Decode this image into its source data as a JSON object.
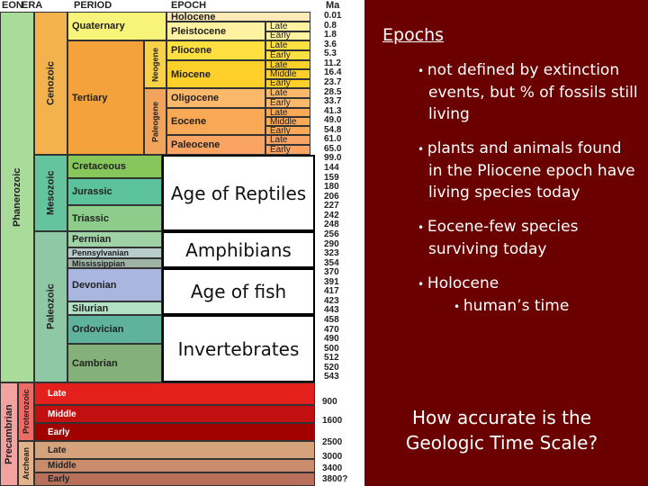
{
  "header": {
    "eon": "EON",
    "era": "ERA",
    "period": "PERIOD",
    "epoch": "EPOCH",
    "ma": "Ma"
  },
  "eons": [
    "Phanerozoic",
    "Precambrian"
  ],
  "eras": [
    "Cenozoic",
    "Mesozoic",
    "Paleozoic",
    "Proterozoic",
    "Archean"
  ],
  "cenozoic_periods": [
    "Quaternary",
    "Tertiary"
  ],
  "subperiods": [
    "Neogene",
    "Paleogene"
  ],
  "epochs": [
    {
      "name": "Holocene",
      "parts": []
    },
    {
      "name": "Pleistocene",
      "parts": [
        "Late",
        "Early"
      ]
    },
    {
      "name": "Pliocene",
      "parts": [
        "Late",
        "Early"
      ]
    },
    {
      "name": "Miocene",
      "parts": [
        "Late",
        "Middle",
        "Early"
      ]
    },
    {
      "name": "Oligocene",
      "parts": [
        "Late",
        "Early"
      ]
    },
    {
      "name": "Eocene",
      "parts": [
        "Late",
        "Middle",
        "Early"
      ]
    },
    {
      "name": "Paleocene",
      "parts": [
        "Late",
        "Early"
      ]
    }
  ],
  "periods": [
    "Cretaceous",
    "Jurassic",
    "Triassic",
    "Permian",
    "Pennsylvanian",
    "Mississippian",
    "Devonian",
    "Silurian",
    "Ordovician",
    "Cambrian"
  ],
  "ages": [
    "Age of Reptiles",
    "Amphibians",
    "Age of fish",
    "Invertebrates"
  ],
  "precambrian_rows": [
    "Late",
    "Middle",
    "Early",
    "Late",
    "Middle",
    "Early"
  ],
  "ma": [
    "0.01",
    "0.8",
    "1.8",
    "3.6",
    "5.3",
    "11.2",
    "16.4",
    "23.7",
    "28.5",
    "33.7",
    "41.3",
    "49.0",
    "54.8",
    "61.0",
    "65.0",
    "99.0",
    "144",
    "159",
    "180",
    "206",
    "227",
    "242",
    "248",
    "256",
    "290",
    "323",
    "354",
    "370",
    "391",
    "417",
    "423",
    "443",
    "458",
    "470",
    "490",
    "500",
    "512",
    "520",
    "543"
  ],
  "ma_precambrian": [
    "900",
    "1600",
    "2500",
    "3000",
    "3400",
    "3800?"
  ],
  "slide": {
    "title": "Epochs",
    "bullets": [
      {
        "text": "not defined by extinction events, but % of fossils still living"
      },
      {
        "text": "plants and animals found in the Pliocene epoch have living species today"
      },
      {
        "text": "Eocene-few species surviving today"
      },
      {
        "text": "Holocene",
        "sub": "human’s time"
      }
    ],
    "question": "How accurate is the Geologic Time Scale?"
  }
}
